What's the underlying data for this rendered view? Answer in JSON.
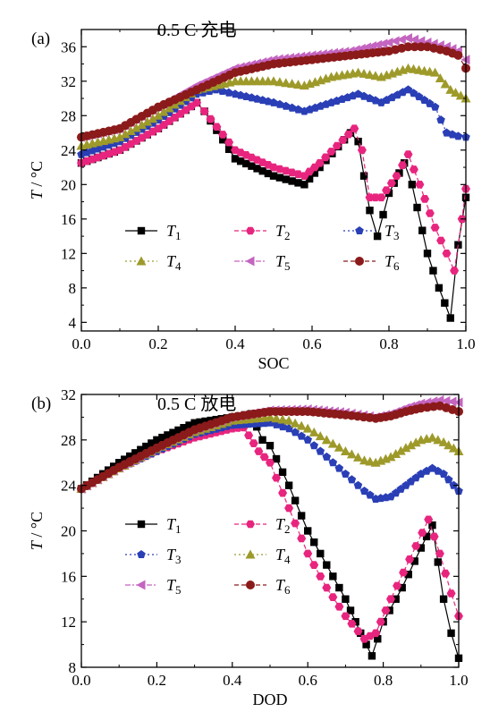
{
  "chart_data": [
    {
      "type": "line",
      "panel_label": "(a)",
      "title": "0.5 C 充电",
      "xlabel": "SOC",
      "ylabel_italic": "T",
      "ylabel_unit": " / °C",
      "xlim": [
        0,
        1
      ],
      "ylim": [
        3,
        38
      ],
      "xticks": [
        0.0,
        0.2,
        0.4,
        0.6,
        0.8,
        1.0
      ],
      "xtick_labels": [
        "0.0",
        "0.2",
        "0.4",
        "0.6",
        "0.8",
        "1.0"
      ],
      "yticks": [
        4,
        8,
        12,
        16,
        20,
        24,
        28,
        32,
        36
      ],
      "ytick_labels": [
        "4",
        "8",
        "12",
        "16",
        "20",
        "24",
        "28",
        "32",
        "36"
      ],
      "grid": false,
      "legend_placement": "bottom-left",
      "legend_columns": 3,
      "series": [
        {
          "name": "T",
          "sub": "1",
          "color": "#000000",
          "marker": "square",
          "dash": "",
          "points": [
            [
              0,
              22.5
            ],
            [
              0.1,
              24
            ],
            [
              0.2,
              26.5
            ],
            [
              0.3,
              29.5
            ],
            [
              0.32,
              28.5
            ],
            [
              0.4,
              23
            ],
            [
              0.5,
              21
            ],
            [
              0.58,
              20
            ],
            [
              0.62,
              22
            ],
            [
              0.7,
              26
            ],
            [
              0.72,
              25
            ],
            [
              0.75,
              17
            ],
            [
              0.77,
              14
            ],
            [
              0.8,
              19
            ],
            [
              0.84,
              22.5
            ],
            [
              0.86,
              20
            ],
            [
              0.9,
              12
            ],
            [
              0.93,
              8
            ],
            [
              0.96,
              4.5
            ],
            [
              0.98,
              13
            ],
            [
              1.0,
              18.5
            ]
          ]
        },
        {
          "name": "T",
          "sub": "2",
          "color": "#e8257e",
          "marker": "hexagon",
          "dash": "5,3",
          "points": [
            [
              0,
              22.5
            ],
            [
              0.1,
              24
            ],
            [
              0.2,
              26.5
            ],
            [
              0.3,
              29.5
            ],
            [
              0.32,
              28.5
            ],
            [
              0.4,
              24
            ],
            [
              0.5,
              22
            ],
            [
              0.58,
              21
            ],
            [
              0.62,
              22.5
            ],
            [
              0.71,
              26.5
            ],
            [
              0.73,
              24
            ],
            [
              0.75,
              18.5
            ],
            [
              0.78,
              18.5
            ],
            [
              0.82,
              21
            ],
            [
              0.85,
              23.5
            ],
            [
              0.88,
              20
            ],
            [
              0.92,
              15
            ],
            [
              0.95,
              12
            ],
            [
              0.97,
              10
            ],
            [
              0.99,
              16
            ],
            [
              1.0,
              19.5
            ]
          ]
        },
        {
          "name": "T",
          "sub": "3",
          "color": "#2a3fb6",
          "marker": "pentagon",
          "dash": "2,3",
          "points": [
            [
              0,
              23.5
            ],
            [
              0.1,
              25
            ],
            [
              0.2,
              27.5
            ],
            [
              0.3,
              30.5
            ],
            [
              0.35,
              31
            ],
            [
              0.4,
              30.5
            ],
            [
              0.5,
              29.5
            ],
            [
              0.58,
              28.5
            ],
            [
              0.65,
              29.5
            ],
            [
              0.72,
              30.5
            ],
            [
              0.78,
              29.5
            ],
            [
              0.85,
              31
            ],
            [
              0.92,
              29
            ],
            [
              0.95,
              26
            ],
            [
              0.98,
              25.6
            ],
            [
              1.0,
              25.5
            ]
          ]
        },
        {
          "name": "T",
          "sub": "4",
          "color": "#9e9a2a",
          "marker": "triangle",
          "dash": "2,3",
          "points": [
            [
              0,
              24.5
            ],
            [
              0.1,
              25.5
            ],
            [
              0.2,
              28
            ],
            [
              0.3,
              31
            ],
            [
              0.4,
              32
            ],
            [
              0.5,
              32
            ],
            [
              0.58,
              31.5
            ],
            [
              0.65,
              32.5
            ],
            [
              0.72,
              33
            ],
            [
              0.78,
              32.5
            ],
            [
              0.85,
              33.5
            ],
            [
              0.92,
              33
            ],
            [
              0.96,
              31
            ],
            [
              1.0,
              30
            ]
          ]
        },
        {
          "name": "T",
          "sub": "5",
          "color": "#c465c0",
          "marker": "triangle-left",
          "dash": "6,2,2,2",
          "points": [
            [
              0,
              25.5
            ],
            [
              0.1,
              26.5
            ],
            [
              0.2,
              29
            ],
            [
              0.3,
              31.5
            ],
            [
              0.4,
              33.5
            ],
            [
              0.5,
              34.5
            ],
            [
              0.6,
              35
            ],
            [
              0.7,
              35.5
            ],
            [
              0.8,
              36.5
            ],
            [
              0.85,
              37
            ],
            [
              0.9,
              36.5
            ],
            [
              0.95,
              36
            ],
            [
              0.98,
              35.5
            ],
            [
              1.0,
              34.5
            ]
          ]
        },
        {
          "name": "T",
          "sub": "6",
          "color": "#8b1a1a",
          "marker": "circle",
          "dash": "5,3",
          "points": [
            [
              0,
              25.5
            ],
            [
              0.1,
              26.5
            ],
            [
              0.2,
              29
            ],
            [
              0.3,
              31
            ],
            [
              0.4,
              33
            ],
            [
              0.5,
              34
            ],
            [
              0.6,
              34.5
            ],
            [
              0.7,
              35
            ],
            [
              0.8,
              35.5
            ],
            [
              0.85,
              36
            ],
            [
              0.9,
              36
            ],
            [
              0.95,
              35.5
            ],
            [
              0.98,
              35
            ],
            [
              1.0,
              33.5
            ]
          ]
        }
      ]
    },
    {
      "type": "line",
      "panel_label": "(b)",
      "title": "0.5 C 放电",
      "xlabel": "DOD",
      "ylabel_italic": "T",
      "ylabel_unit": " / °C",
      "xlim": [
        0,
        1
      ],
      "ylim": [
        8,
        32
      ],
      "xticks": [
        0.0,
        0.2,
        0.4,
        0.6,
        0.8,
        1.0
      ],
      "xtick_labels": [
        "0.0",
        "0.2",
        "0.4",
        "0.6",
        "0.8",
        "1.0"
      ],
      "yticks": [
        8,
        12,
        16,
        20,
        24,
        28,
        32
      ],
      "ytick_labels": [
        "8",
        "12",
        "16",
        "20",
        "24",
        "28",
        "32"
      ],
      "grid": false,
      "legend_placement": "bottom-left",
      "legend_columns": 2,
      "series": [
        {
          "name": "T",
          "sub": "1",
          "color": "#000000",
          "marker": "square",
          "dash": "",
          "points": [
            [
              0,
              23.7
            ],
            [
              0.1,
              26
            ],
            [
              0.2,
              28
            ],
            [
              0.3,
              29.5
            ],
            [
              0.4,
              30
            ],
            [
              0.45,
              30.3
            ],
            [
              0.48,
              28
            ],
            [
              0.5,
              27.5
            ],
            [
              0.55,
              24
            ],
            [
              0.6,
              20
            ],
            [
              0.65,
              17
            ],
            [
              0.7,
              14
            ],
            [
              0.74,
              11
            ],
            [
              0.77,
              9
            ],
            [
              0.8,
              12
            ],
            [
              0.85,
              15
            ],
            [
              0.9,
              18.5
            ],
            [
              0.93,
              20.5
            ],
            [
              0.96,
              14
            ],
            [
              0.98,
              11
            ],
            [
              1.0,
              8.8
            ]
          ]
        },
        {
          "name": "T",
          "sub": "2",
          "color": "#e8257e",
          "marker": "hexagon",
          "dash": "5,3",
          "points": [
            [
              0,
              23.7
            ],
            [
              0.1,
              25.5
            ],
            [
              0.2,
              27
            ],
            [
              0.3,
              28.2
            ],
            [
              0.4,
              29
            ],
            [
              0.43,
              29.1
            ],
            [
              0.47,
              27
            ],
            [
              0.5,
              26
            ],
            [
              0.55,
              22
            ],
            [
              0.6,
              18
            ],
            [
              0.65,
              15
            ],
            [
              0.7,
              12.5
            ],
            [
              0.75,
              10.5
            ],
            [
              0.78,
              11
            ],
            [
              0.82,
              14
            ],
            [
              0.87,
              17.5
            ],
            [
              0.92,
              21
            ],
            [
              0.95,
              18
            ],
            [
              0.98,
              14.5
            ],
            [
              1.0,
              12.5
            ]
          ]
        },
        {
          "name": "T",
          "sub": "3",
          "color": "#2a3fb6",
          "marker": "pentagon",
          "dash": "2,3",
          "points": [
            [
              0,
              23.7
            ],
            [
              0.1,
              25.5
            ],
            [
              0.2,
              27
            ],
            [
              0.3,
              28.5
            ],
            [
              0.4,
              29.3
            ],
            [
              0.5,
              29.5
            ],
            [
              0.55,
              29
            ],
            [
              0.6,
              28
            ],
            [
              0.65,
              26.5
            ],
            [
              0.7,
              25
            ],
            [
              0.75,
              23.5
            ],
            [
              0.78,
              22.8
            ],
            [
              0.82,
              23
            ],
            [
              0.86,
              24
            ],
            [
              0.9,
              25
            ],
            [
              0.93,
              25.5
            ],
            [
              0.96,
              25
            ],
            [
              1.0,
              23.5
            ]
          ]
        },
        {
          "name": "T",
          "sub": "4",
          "color": "#9e9a2a",
          "marker": "triangle",
          "dash": "2,3",
          "points": [
            [
              0,
              23.7
            ],
            [
              0.1,
              25.5
            ],
            [
              0.2,
              27.2
            ],
            [
              0.3,
              28.7
            ],
            [
              0.4,
              29.7
            ],
            [
              0.5,
              30
            ],
            [
              0.55,
              29.7
            ],
            [
              0.6,
              29
            ],
            [
              0.65,
              28
            ],
            [
              0.7,
              27
            ],
            [
              0.75,
              26.2
            ],
            [
              0.78,
              26
            ],
            [
              0.82,
              26.5
            ],
            [
              0.86,
              27.3
            ],
            [
              0.9,
              28
            ],
            [
              0.93,
              28.2
            ],
            [
              0.96,
              27.8
            ],
            [
              1.0,
              27
            ]
          ]
        },
        {
          "name": "T",
          "sub": "5",
          "color": "#c465c0",
          "marker": "triangle-left",
          "dash": "6,2,2,2",
          "points": [
            [
              0,
              23.7
            ],
            [
              0.1,
              25.6
            ],
            [
              0.2,
              27.3
            ],
            [
              0.3,
              28.9
            ],
            [
              0.4,
              30
            ],
            [
              0.5,
              30.6
            ],
            [
              0.6,
              30.7
            ],
            [
              0.7,
              30.4
            ],
            [
              0.78,
              30
            ],
            [
              0.82,
              30.3
            ],
            [
              0.86,
              30.8
            ],
            [
              0.9,
              31.2
            ],
            [
              0.95,
              31.5
            ],
            [
              1.0,
              31.3
            ]
          ]
        },
        {
          "name": "T",
          "sub": "6",
          "color": "#8b1a1a",
          "marker": "circle",
          "dash": "5,3",
          "points": [
            [
              0,
              23.7
            ],
            [
              0.1,
              25.6
            ],
            [
              0.2,
              27.3
            ],
            [
              0.3,
              28.9
            ],
            [
              0.4,
              30
            ],
            [
              0.5,
              30.5
            ],
            [
              0.6,
              30.5
            ],
            [
              0.7,
              30.2
            ],
            [
              0.78,
              29.9
            ],
            [
              0.82,
              30.1
            ],
            [
              0.86,
              30.5
            ],
            [
              0.9,
              30.8
            ],
            [
              0.95,
              31
            ],
            [
              1.0,
              30.5
            ]
          ]
        }
      ]
    }
  ]
}
